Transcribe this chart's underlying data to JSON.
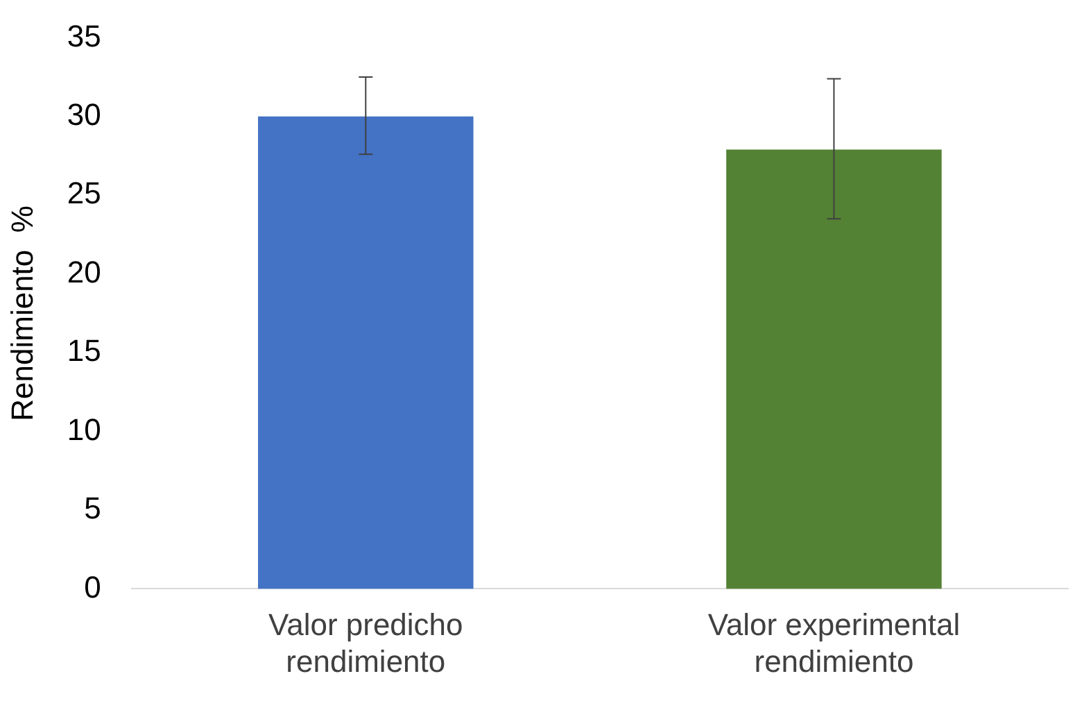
{
  "chart_data": {
    "type": "bar",
    "ylabel": "Rendimiento  %",
    "categories": [
      "Valor predicho\nrendimiento",
      "Valor experimental\nrendimiento"
    ],
    "values": [
      30,
      27.9
    ],
    "colors": [
      "#4472c4",
      "#548235"
    ],
    "errors": [
      [
        27.6,
        32.5
      ],
      [
        23.5,
        32.4
      ]
    ],
    "ylim": [
      0,
      35
    ],
    "yticks": [
      0,
      5,
      10,
      15,
      20,
      25,
      30,
      35
    ],
    "grid": false,
    "legend": false
  }
}
